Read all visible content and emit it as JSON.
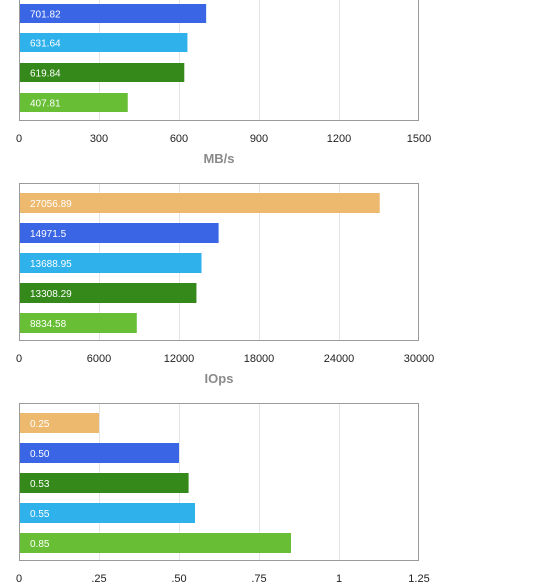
{
  "colors": {
    "orange": "#EDB96F",
    "blue": "#3A66E6",
    "cyan": "#2FB1EB",
    "darkgreen": "#35891A",
    "green": "#68BE35",
    "frame": "#9A9A9A",
    "grid": "#E5E5E5",
    "tick_text": "#222222",
    "axis_title": "#8A8A8A",
    "bar_label": "#FFFFFF"
  },
  "chart_data": [
    {
      "type": "bar",
      "orientation": "horizontal",
      "title": "",
      "xlabel": "MB/s",
      "xlim": [
        0,
        1500
      ],
      "ticks": [
        "0",
        "300",
        "600",
        "900",
        "1200",
        "1500"
      ],
      "bars": [
        {
          "value": 701.82,
          "label": "701.82",
          "color": "blue"
        },
        {
          "value": 631.64,
          "label": "631.64",
          "color": "cyan"
        },
        {
          "value": 619.84,
          "label": "619.84",
          "color": "darkgreen"
        },
        {
          "value": 407.81,
          "label": "407.81",
          "color": "green"
        }
      ],
      "grid": true
    },
    {
      "type": "bar",
      "orientation": "horizontal",
      "title": "",
      "xlabel": "IOps",
      "xlim": [
        0,
        30000
      ],
      "ticks": [
        "0",
        "6000",
        "12000",
        "18000",
        "24000",
        "30000"
      ],
      "bars": [
        {
          "value": 27056.89,
          "label": "27056.89",
          "color": "orange"
        },
        {
          "value": 14971.5,
          "label": "14971.5",
          "color": "blue"
        },
        {
          "value": 13688.95,
          "label": "13688.95",
          "color": "cyan"
        },
        {
          "value": 13308.29,
          "label": "13308.29",
          "color": "darkgreen"
        },
        {
          "value": 8834.58,
          "label": "8834.58",
          "color": "green"
        }
      ],
      "grid": true
    },
    {
      "type": "bar",
      "orientation": "horizontal",
      "title": "",
      "xlabel": "",
      "xlim": [
        0,
        1.25
      ],
      "ticks": [
        "0",
        ".25",
        ".50",
        ".75",
        "1",
        "1.25"
      ],
      "bars": [
        {
          "value": 0.25,
          "label": "0.25",
          "color": "orange"
        },
        {
          "value": 0.5,
          "label": "0.50",
          "color": "blue"
        },
        {
          "value": 0.53,
          "label": "0.53",
          "color": "darkgreen"
        },
        {
          "value": 0.55,
          "label": "0.55",
          "color": "cyan"
        },
        {
          "value": 0.85,
          "label": "0.85",
          "color": "green"
        }
      ],
      "grid": true
    }
  ]
}
